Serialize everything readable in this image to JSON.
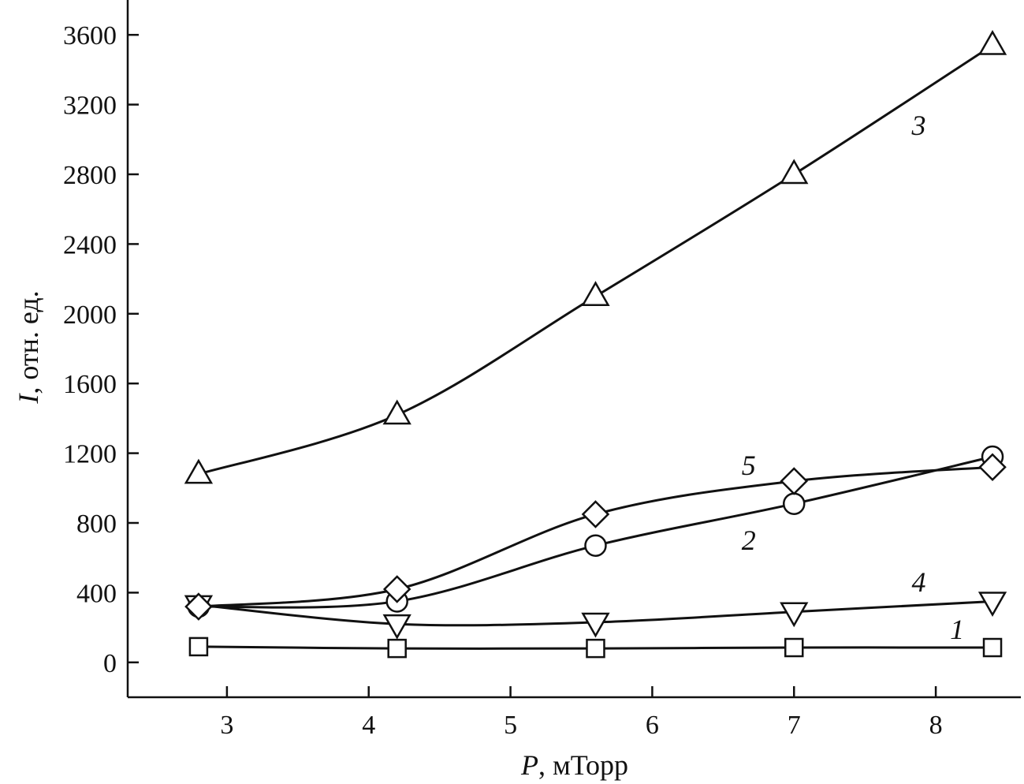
{
  "chart_data": {
    "type": "line",
    "xlabel_var": "P",
    "xlabel_unit": ", мТорр",
    "ylabel_var": "I",
    "ylabel_unit": ", отн. ед.",
    "xlim": [
      2.3,
      8.6
    ],
    "ylim": [
      -200,
      3800
    ],
    "x_ticks": [
      3,
      4,
      5,
      6,
      7,
      8
    ],
    "y_ticks": [
      0,
      400,
      800,
      1200,
      1600,
      2000,
      2400,
      2800,
      3200,
      3600
    ],
    "x": [
      2.8,
      4.2,
      5.6,
      7.0,
      8.4
    ],
    "grid": false,
    "series": [
      {
        "name": "1",
        "marker": "square",
        "values": [
          90,
          80,
          80,
          85,
          85
        ]
      },
      {
        "name": "2",
        "marker": "circle",
        "values": [
          320,
          350,
          670,
          910,
          1180
        ]
      },
      {
        "name": "3",
        "marker": "triangle-up",
        "values": [
          1080,
          1420,
          2100,
          2800,
          3540
        ]
      },
      {
        "name": "4",
        "marker": "triangle-down",
        "values": [
          330,
          220,
          230,
          290,
          350
        ]
      },
      {
        "name": "5",
        "marker": "diamond",
        "values": [
          320,
          420,
          850,
          1040,
          1120
        ]
      }
    ],
    "labels": [
      {
        "text": "1",
        "x": 8.15,
        "y": 190
      },
      {
        "text": "2",
        "x": 6.68,
        "y": 700
      },
      {
        "text": "3",
        "x": 7.88,
        "y": 3080
      },
      {
        "text": "4",
        "x": 7.88,
        "y": 460
      },
      {
        "text": "5",
        "x": 6.68,
        "y": 1130
      }
    ]
  }
}
